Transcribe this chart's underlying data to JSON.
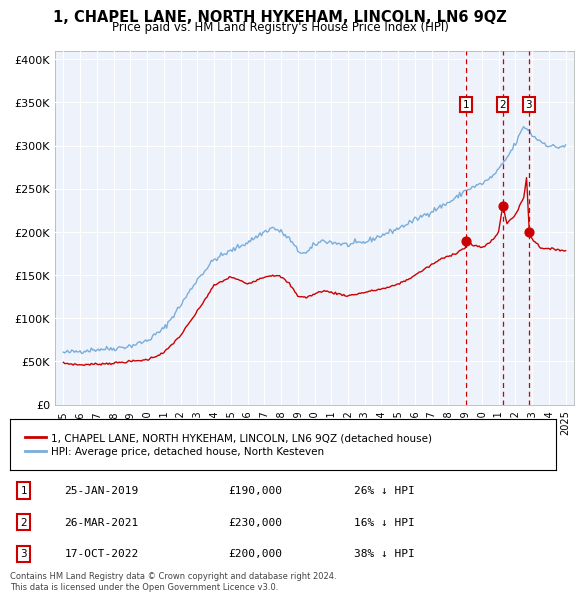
{
  "title": "1, CHAPEL LANE, NORTH HYKEHAM, LINCOLN, LN6 9QZ",
  "subtitle": "Price paid vs. HM Land Registry's House Price Index (HPI)",
  "hpi_color": "#7aaddb",
  "price_color": "#cc0000",
  "dashed_color": "#cc0000",
  "background_plot": "#eef2fa",
  "legend_label_price": "1, CHAPEL LANE, NORTH HYKEHAM, LINCOLN, LN6 9QZ (detached house)",
  "legend_label_hpi": "HPI: Average price, detached house, North Kesteven",
  "transactions": [
    {
      "num": 1,
      "date": "25-JAN-2019",
      "price": 190000,
      "pct": "26%",
      "dir": "↓",
      "x": 2019.07
    },
    {
      "num": 2,
      "date": "26-MAR-2021",
      "price": 230000,
      "pct": "16%",
      "dir": "↓",
      "x": 2021.23
    },
    {
      "num": 3,
      "date": "17-OCT-2022",
      "price": 200000,
      "pct": "38%",
      "dir": "↓",
      "x": 2022.79
    }
  ],
  "footer": "Contains HM Land Registry data © Crown copyright and database right 2024.\nThis data is licensed under the Open Government Licence v3.0.",
  "ylim": [
    0,
    410000
  ],
  "yticks": [
    0,
    50000,
    100000,
    150000,
    200000,
    250000,
    300000,
    350000,
    400000
  ],
  "ytick_labels": [
    "£0",
    "£50K",
    "£100K",
    "£150K",
    "£200K",
    "£250K",
    "£300K",
    "£350K",
    "£400K"
  ],
  "xlim": [
    1994.5,
    2025.5
  ],
  "xticks": [
    1995,
    1996,
    1997,
    1998,
    1999,
    2000,
    2001,
    2002,
    2003,
    2004,
    2005,
    2006,
    2007,
    2008,
    2009,
    2010,
    2011,
    2012,
    2013,
    2014,
    2015,
    2016,
    2017,
    2018,
    2019,
    2020,
    2021,
    2022,
    2023,
    2024,
    2025
  ],
  "hpi_checkpoints": [
    [
      1995.0,
      60000
    ],
    [
      1996.0,
      62000
    ],
    [
      1997.0,
      64000
    ],
    [
      1998.0,
      65000
    ],
    [
      1999.0,
      68000
    ],
    [
      2000.0,
      74000
    ],
    [
      2001.0,
      88000
    ],
    [
      2002.0,
      115000
    ],
    [
      2003.0,
      145000
    ],
    [
      2004.0,
      168000
    ],
    [
      2005.0,
      178000
    ],
    [
      2006.0,
      188000
    ],
    [
      2007.0,
      200000
    ],
    [
      2007.5,
      205000
    ],
    [
      2008.0,
      200000
    ],
    [
      2008.5,
      192000
    ],
    [
      2009.0,
      178000
    ],
    [
      2009.5,
      175000
    ],
    [
      2010.0,
      185000
    ],
    [
      2010.5,
      190000
    ],
    [
      2011.0,
      188000
    ],
    [
      2012.0,
      185000
    ],
    [
      2013.0,
      188000
    ],
    [
      2014.0,
      196000
    ],
    [
      2015.0,
      204000
    ],
    [
      2016.0,
      214000
    ],
    [
      2017.0,
      224000
    ],
    [
      2018.0,
      234000
    ],
    [
      2018.5,
      240000
    ],
    [
      2019.0,
      248000
    ],
    [
      2019.5,
      252000
    ],
    [
      2020.0,
      256000
    ],
    [
      2020.5,
      262000
    ],
    [
      2021.0,
      272000
    ],
    [
      2021.5,
      286000
    ],
    [
      2022.0,
      302000
    ],
    [
      2022.5,
      322000
    ],
    [
      2022.8,
      318000
    ],
    [
      2023.0,
      312000
    ],
    [
      2023.5,
      305000
    ],
    [
      2024.0,
      300000
    ],
    [
      2024.5,
      298000
    ],
    [
      2025.0,
      300000
    ]
  ],
  "price_checkpoints": [
    [
      1995.0,
      48000
    ],
    [
      1996.0,
      46000
    ],
    [
      1997.0,
      47000
    ],
    [
      1998.0,
      48000
    ],
    [
      1999.0,
      50000
    ],
    [
      2000.0,
      52000
    ],
    [
      2001.0,
      60000
    ],
    [
      2002.0,
      80000
    ],
    [
      2003.0,
      108000
    ],
    [
      2004.0,
      138000
    ],
    [
      2005.0,
      148000
    ],
    [
      2006.0,
      140000
    ],
    [
      2007.0,
      148000
    ],
    [
      2007.5,
      150000
    ],
    [
      2008.0,
      148000
    ],
    [
      2008.5,
      140000
    ],
    [
      2009.0,
      126000
    ],
    [
      2009.5,
      124000
    ],
    [
      2010.0,
      128000
    ],
    [
      2010.5,
      132000
    ],
    [
      2011.0,
      130000
    ],
    [
      2011.5,
      128000
    ],
    [
      2012.0,
      126000
    ],
    [
      2012.5,
      128000
    ],
    [
      2013.0,
      130000
    ],
    [
      2013.5,
      132000
    ],
    [
      2014.0,
      134000
    ],
    [
      2014.5,
      136000
    ],
    [
      2015.0,
      140000
    ],
    [
      2015.5,
      144000
    ],
    [
      2016.0,
      150000
    ],
    [
      2016.5,
      156000
    ],
    [
      2017.0,
      162000
    ],
    [
      2017.5,
      168000
    ],
    [
      2018.0,
      172000
    ],
    [
      2018.5,
      176000
    ],
    [
      2019.0,
      182000
    ],
    [
      2019.07,
      190000
    ],
    [
      2019.2,
      188000
    ],
    [
      2019.5,
      184000
    ],
    [
      2020.0,
      182000
    ],
    [
      2020.5,
      188000
    ],
    [
      2021.0,
      200000
    ],
    [
      2021.23,
      230000
    ],
    [
      2021.5,
      210000
    ],
    [
      2022.0,
      220000
    ],
    [
      2022.5,
      240000
    ],
    [
      2022.7,
      268000
    ],
    [
      2022.79,
      200000
    ],
    [
      2023.0,
      192000
    ],
    [
      2023.5,
      182000
    ],
    [
      2024.0,
      180000
    ],
    [
      2024.5,
      180000
    ],
    [
      2025.0,
      178000
    ]
  ]
}
